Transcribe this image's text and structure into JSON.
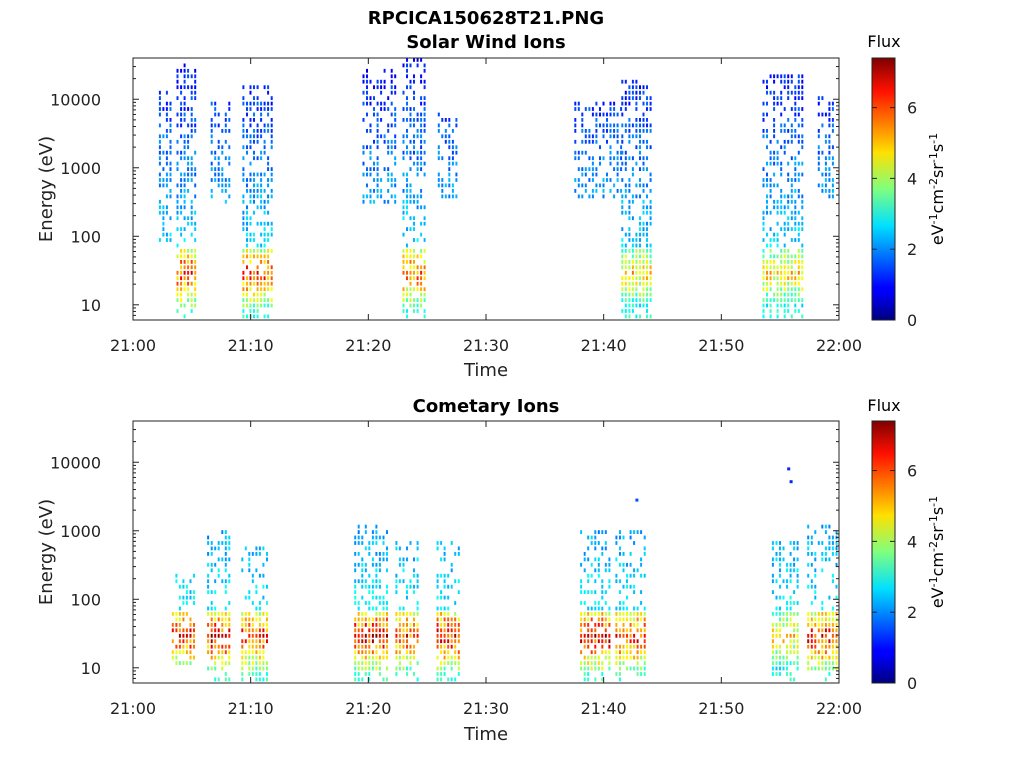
{
  "figure_title": "RPCICA150628T21.PNG",
  "colorbar": {
    "title": "Flux",
    "ticks": [
      0,
      2,
      4,
      6
    ],
    "range": [
      0,
      7.4
    ],
    "label_parts": [
      "eV",
      "-1",
      "cm",
      "-2",
      "sr",
      "-1",
      "s",
      "-1"
    ]
  },
  "chart_data": [
    {
      "type": "heatmap",
      "title": "Solar Wind Ions",
      "xlabel": "Time",
      "ylabel": "Energy (eV)",
      "x_ticks": [
        "21:00",
        "21:10",
        "21:20",
        "21:30",
        "21:40",
        "21:50",
        "22:00"
      ],
      "x_range_minutes": [
        0,
        60
      ],
      "y_ticks": [
        10,
        100,
        1000,
        10000
      ],
      "y_scale": "log",
      "y_range": [
        6,
        40000
      ],
      "color_label": "Flux",
      "clusters": [
        {
          "t_start": 2.2,
          "t_end": 3.2,
          "e_low": 80,
          "e_high": 12000,
          "peak_flux": 2.0
        },
        {
          "t_start": 3.7,
          "t_end": 5.3,
          "e_low": 6,
          "e_high": 30000,
          "peak_flux": 6.8
        },
        {
          "t_start": 6.6,
          "t_end": 8.2,
          "e_low": 300,
          "e_high": 8000,
          "peak_flux": 1.8
        },
        {
          "t_start": 9.3,
          "t_end": 11.8,
          "e_low": 6,
          "e_high": 14000,
          "peak_flux": 6.8
        },
        {
          "t_start": 19.5,
          "t_end": 22.3,
          "e_low": 300,
          "e_high": 25000,
          "peak_flux": 1.8
        },
        {
          "t_start": 22.9,
          "t_end": 24.8,
          "e_low": 6,
          "e_high": 38000,
          "peak_flux": 6.5
        },
        {
          "t_start": 25.9,
          "t_end": 27.5,
          "e_low": 400,
          "e_high": 6000,
          "peak_flux": 2.0
        },
        {
          "t_start": 37.5,
          "t_end": 41.5,
          "e_low": 400,
          "e_high": 8000,
          "peak_flux": 2.0
        },
        {
          "t_start": 41.5,
          "t_end": 44.0,
          "e_low": 6,
          "e_high": 16000,
          "peak_flux": 5.5
        },
        {
          "t_start": 53.5,
          "t_end": 56.8,
          "e_low": 6,
          "e_high": 20000,
          "peak_flux": 5.5
        },
        {
          "t_start": 58.2,
          "t_end": 59.6,
          "e_low": 400,
          "e_high": 10000,
          "peak_flux": 2.0
        }
      ]
    },
    {
      "type": "heatmap",
      "title": "Cometary Ions",
      "xlabel": "Time",
      "ylabel": "Energy (eV)",
      "x_ticks": [
        "21:00",
        "21:10",
        "21:20",
        "21:30",
        "21:40",
        "21:50",
        "22:00"
      ],
      "x_range_minutes": [
        0,
        60
      ],
      "y_ticks": [
        10,
        100,
        1000,
        10000
      ],
      "y_scale": "log",
      "y_range": [
        6,
        40000
      ],
      "color_label": "Flux",
      "clusters": [
        {
          "t_start": 3.3,
          "t_end": 5.2,
          "e_low": 12,
          "e_high": 200,
          "peak_flux": 7.0
        },
        {
          "t_start": 6.3,
          "t_end": 8.3,
          "e_low": 6,
          "e_high": 900,
          "peak_flux": 7.3
        },
        {
          "t_start": 9.2,
          "t_end": 11.6,
          "e_low": 6,
          "e_high": 500,
          "peak_flux": 7.0
        },
        {
          "t_start": 18.8,
          "t_end": 21.8,
          "e_low": 6,
          "e_high": 1200,
          "peak_flux": 7.4
        },
        {
          "t_start": 22.3,
          "t_end": 24.3,
          "e_low": 6,
          "e_high": 600,
          "peak_flux": 6.8
        },
        {
          "t_start": 25.8,
          "t_end": 27.8,
          "e_low": 6,
          "e_high": 600,
          "peak_flux": 7.3
        },
        {
          "t_start": 38.0,
          "t_end": 40.6,
          "e_low": 6,
          "e_high": 1000,
          "peak_flux": 7.4
        },
        {
          "t_start": 41.0,
          "t_end": 43.6,
          "e_low": 6,
          "e_high": 900,
          "peak_flux": 7.0
        },
        {
          "t_start": 54.3,
          "t_end": 56.5,
          "e_low": 6,
          "e_high": 600,
          "peak_flux": 5.5
        },
        {
          "t_start": 57.3,
          "t_end": 59.8,
          "e_low": 6,
          "e_high": 1100,
          "peak_flux": 7.2
        }
      ],
      "isolated_points": [
        {
          "t": 55.6,
          "e": 8000,
          "flux": 1.2
        },
        {
          "t": 55.8,
          "e": 5200,
          "flux": 1.2
        },
        {
          "t": 42.7,
          "e": 2800,
          "flux": 1.5
        }
      ]
    }
  ]
}
